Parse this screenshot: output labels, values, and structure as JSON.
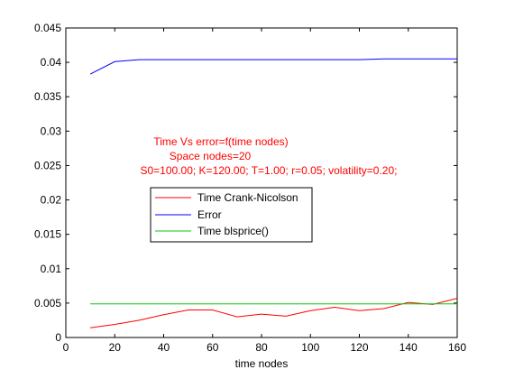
{
  "chart_data": {
    "type": "line",
    "xlabel": "time nodes",
    "ylabel": "",
    "xlim": [
      0,
      160
    ],
    "ylim": [
      0,
      0.045
    ],
    "x_ticks": [
      "0",
      "20",
      "40",
      "60",
      "80",
      "100",
      "120",
      "140",
      "160"
    ],
    "y_ticks": [
      "0",
      "0.005",
      "0.01",
      "0.015",
      "0.02",
      "0.025",
      "0.03",
      "0.035",
      "0.04",
      "0.045"
    ],
    "grid": false,
    "legend_position": "center-left",
    "x": [
      10,
      20,
      30,
      40,
      50,
      60,
      70,
      80,
      90,
      100,
      110,
      120,
      130,
      140,
      150,
      160
    ],
    "series": [
      {
        "name": "Time Crank-Nicolson",
        "color": "#ff0000",
        "values": [
          0.0014,
          0.0019,
          0.0025,
          0.0033,
          0.004,
          0.004,
          0.003,
          0.0034,
          0.0031,
          0.0039,
          0.0044,
          0.0039,
          0.0042,
          0.0051,
          0.0048,
          0.0057
        ]
      },
      {
        "name": "Error",
        "color": "#0000ff",
        "values": [
          0.0383,
          0.0401,
          0.0404,
          0.0404,
          0.0404,
          0.0404,
          0.0404,
          0.0404,
          0.0404,
          0.0404,
          0.0404,
          0.0404,
          0.0405,
          0.0405,
          0.0405,
          0.0405
        ]
      },
      {
        "name": "Time blsprice()",
        "color": "#00cc00",
        "values": [
          0.0049,
          0.0049,
          0.0049,
          0.0049,
          0.0049,
          0.0049,
          0.0049,
          0.0049,
          0.0049,
          0.0049,
          0.0049,
          0.0049,
          0.0049,
          0.0049,
          0.0049,
          0.0049
        ]
      }
    ],
    "annotation_lines": [
      "Time Vs error=f(time nodes)",
      "Space nodes=20",
      "S0=100.00; K=120.00; T=1.00; r=0.05; volatility=0.20;"
    ],
    "annotation_color": "#ff0000"
  }
}
